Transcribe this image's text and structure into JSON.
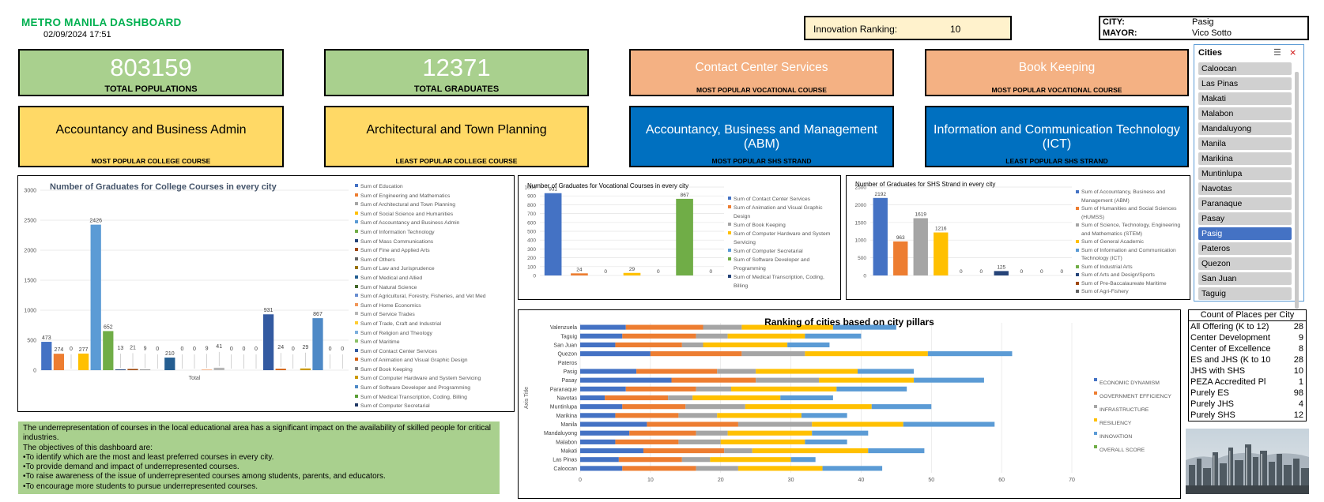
{
  "header": {
    "title": "METRO MANILA DASHBOARD",
    "datetime": "02/09/2024 17:51",
    "innovation_label": "Innovation Ranking:",
    "innovation_value": "10",
    "city_label": "CITY:",
    "city_value": "Pasig",
    "mayor_label": "MAYOR:",
    "mayor_value": "Vico Sotto"
  },
  "kpis": [
    {
      "value": "803159",
      "label": "TOTAL POPULATIONS",
      "color": "#a9d08e"
    },
    {
      "value": "12371",
      "label": "TOTAL GRADUATES",
      "color": "#a9d08e"
    },
    {
      "value": "Contact Center Services",
      "label": "MOST POPULAR VOCATIONAL COURSE",
      "color": "#f4b183"
    },
    {
      "value": "Book Keeping",
      "label": "MOST POPULAR VOCATIONAL COURSE",
      "color": "#f4b183"
    },
    {
      "value": "Accountancy and Business Admin",
      "label": "MOST POPULAR COLLEGE COURSE",
      "color": "#ffd966"
    },
    {
      "value": "Architectural and Town Planning",
      "label": "LEAST POPULAR COLLEGE COURSE",
      "color": "#ffd966"
    },
    {
      "value": "Accountancy, Business and Management (ABM)",
      "label": "MOST POPULAR SHS STRAND",
      "color": "#0070c0"
    },
    {
      "value": "Information and Communication Technology (ICT)",
      "label": "LEAST POPULAR SHS STRAND",
      "color": "#0070c0"
    }
  ],
  "slicer": {
    "title": "Cities",
    "items": [
      "Caloocan",
      "Las Pinas",
      "Makati",
      "Malabon",
      "Mandaluyong",
      "Manila",
      "Marikina",
      "Muntinlupa",
      "Navotas",
      "Paranaque",
      "Pasay",
      "Pasig",
      "Pateros",
      "Quezon",
      "San Juan",
      "Taguig"
    ],
    "selected": "Pasig"
  },
  "objectives": {
    "intro": "The underrepresentation of courses in the local educational area has a significant impact on the availability of skilled people for critical industries.",
    "lead": "The objectives of this dashboard are:",
    "items": [
      "•To identify which are the most and least preferred courses in every city.",
      "•To provide demand and impact of underrepresented courses.",
      "•To raise awareness of the issue of underrepresented courses among students, parents, and educators.",
      "•To encourage more students to pursue underrepresented courses."
    ]
  },
  "count_table": {
    "header": "Count of Places per City",
    "rows": [
      {
        "label": "All Offering (K to 12)",
        "value": "28"
      },
      {
        "label": "Center Development",
        "value": "9"
      },
      {
        "label": "Center of Excellence",
        "value": "8"
      },
      {
        "label": "ES and JHS (K to 10",
        "value": "28"
      },
      {
        "label": "JHS with SHS",
        "value": "10"
      },
      {
        "label": "PEZA Accredited Pl",
        "value": "1"
      },
      {
        "label": "Purely ES",
        "value": "98"
      },
      {
        "label": "Purely JHS",
        "value": "4"
      },
      {
        "label": "Purely SHS",
        "value": "12"
      }
    ]
  },
  "chart_data": [
    {
      "type": "bar",
      "title": "Number of Graduates for College Courses in every city",
      "xlabel": "Total",
      "ylim": [
        0,
        3000
      ],
      "yticks": [
        "0",
        "500",
        "1000",
        "1500",
        "2000",
        "2500",
        "3000"
      ],
      "legend_position": "right",
      "series": [
        {
          "name": "Sum of Education",
          "value": 473,
          "label": "473",
          "color": "#4472c4"
        },
        {
          "name": "Sum of Engineering and Mathematics",
          "value": 274,
          "label": "274",
          "color": "#ed7d31"
        },
        {
          "name": "Sum of Architectural and Town Planning",
          "value": 0,
          "label": "0",
          "color": "#a5a5a5"
        },
        {
          "name": "Sum of Social Science and Humanities",
          "value": 277,
          "label": "277",
          "color": "#ffc000"
        },
        {
          "name": "Sum of Accountancy and Business Admin",
          "value": 2426,
          "label": "2426",
          "color": "#5b9bd5"
        },
        {
          "name": "Sum of Information Technology",
          "value": 652,
          "label": "652",
          "color": "#70ad47"
        },
        {
          "name": "Sum of Mass Communications",
          "value": 13,
          "label": "13",
          "color": "#264478"
        },
        {
          "name": "Sum of Fine and Applied Arts",
          "value": 21,
          "label": "21",
          "color": "#9e480e"
        },
        {
          "name": "Sum of Others",
          "value": 9,
          "label": "9",
          "color": "#636363"
        },
        {
          "name": "Sum of Law and Jurisprudence",
          "value": 0,
          "label": "0",
          "color": "#997300"
        },
        {
          "name": "Sum of Medical and Allied",
          "value": 210,
          "label": "210",
          "color": "#255e91"
        },
        {
          "name": "Sum of Natural Science",
          "value": 0,
          "label": "0",
          "color": "#43682b"
        },
        {
          "name": "Sum of Agricultural, Forestry, Fisheries, and Vet Med",
          "value": 0,
          "label": "0",
          "color": "#698ed0"
        },
        {
          "name": "Sum of Home Economics",
          "value": 9,
          "label": "9",
          "color": "#f1975a"
        },
        {
          "name": "Sum of Service Trades",
          "value": 41,
          "label": "41",
          "color": "#b7b7b7"
        },
        {
          "name": "Sum of Trade, Craft and Industrial",
          "value": 0,
          "label": "0",
          "color": "#ffcd33"
        },
        {
          "name": "Sum of Religion and Theology",
          "value": 0,
          "label": "0",
          "color": "#7cafdd"
        },
        {
          "name": "Sum of Maritime",
          "value": 0,
          "label": "0",
          "color": "#8cc168"
        },
        {
          "name": "Sum of Contact Center Services",
          "value": 931,
          "label": "931",
          "color": "#335aa1"
        },
        {
          "name": "Sum of Animation and Visual Graphic Design",
          "value": 24,
          "label": "24",
          "color": "#d26012"
        },
        {
          "name": "Sum of Book Keeping",
          "value": 0,
          "label": "0",
          "color": "#848484"
        },
        {
          "name": "Sum of Computer Hardware and System Servicing",
          "value": 29,
          "label": "29",
          "color": "#cc9a00"
        },
        {
          "name": "Sum of Software Developer and Programming",
          "value": 867,
          "label": "867",
          "color": "#4e89c6"
        },
        {
          "name": "Sum of Medical Transcription, Coding, Billing",
          "value": 0,
          "label": "0",
          "color": "#5a9e36"
        },
        {
          "name": "Sum of Computer Secretarial",
          "value": 0,
          "label": "0",
          "color": "#203864"
        }
      ]
    },
    {
      "type": "bar",
      "title": "Number of Graduates for Vocational Courses in every city",
      "ylim": [
        0,
        1000
      ],
      "yticks": [
        "0",
        "100",
        "200",
        "300",
        "400",
        "500",
        "600",
        "700",
        "800",
        "900",
        "1000"
      ],
      "legend_position": "right",
      "series": [
        {
          "name": "Sum of Contact Center Services",
          "value": 931,
          "label": "931",
          "color": "#4472c4"
        },
        {
          "name": "Sum of Animation and Visual Graphic Design",
          "value": 24,
          "label": "24",
          "color": "#ed7d31"
        },
        {
          "name": "Sum of Book Keeping",
          "value": 0,
          "label": "0",
          "color": "#a5a5a5"
        },
        {
          "name": "Sum of Computer Hardware and System Servicing",
          "value": 29,
          "label": "29",
          "color": "#ffc000"
        },
        {
          "name": "Sum of Computer Secretarial",
          "value": 0,
          "label": "0",
          "color": "#5b9bd5"
        },
        {
          "name": "Sum of Software Developer and Programming",
          "value": 867,
          "label": "867",
          "color": "#70ad47"
        },
        {
          "name": "Sum of Medical Transcription, Coding, Billing",
          "value": 0,
          "label": "0",
          "color": "#264478"
        }
      ]
    },
    {
      "type": "bar",
      "title": "Number of Graduates for SHS Strand in every city",
      "ylim": [
        0,
        2500
      ],
      "yticks": [
        "0",
        "500",
        "1000",
        "1500",
        "2000",
        "2500"
      ],
      "legend_position": "right",
      "series": [
        {
          "name": "Sum of Accountancy, Business and Management (ABM)",
          "value": 2192,
          "label": "2192",
          "color": "#4472c4"
        },
        {
          "name": "Sum of Humanities and Social Sciences (HUMSS)",
          "value": 963,
          "label": "963",
          "color": "#ed7d31"
        },
        {
          "name": "Sum of Science, Technology, Engineering and Mathematics (STEM)",
          "value": 1619,
          "label": "1619",
          "color": "#a5a5a5"
        },
        {
          "name": "Sum of General Academic",
          "value": 1216,
          "label": "1216",
          "color": "#ffc000"
        },
        {
          "name": "Sum of Information and Communication Technology (ICT)",
          "value": 0,
          "label": "0",
          "color": "#5b9bd5"
        },
        {
          "name": "Sum of Industrial Arts",
          "value": 0,
          "label": "0",
          "color": "#70ad47"
        },
        {
          "name": "Sum of Arts and Design/Sports",
          "value": 125,
          "label": "125",
          "color": "#264478"
        },
        {
          "name": "Sum of Pre-Baccalaureate Maritime",
          "value": 0,
          "label": "0",
          "color": "#9e480e"
        },
        {
          "name": "Sum of Agri-Fishery",
          "value": 0,
          "label": "0",
          "color": "#636363"
        },
        {
          "name": "",
          "value": 0,
          "label": "0",
          "color": "#997300"
        }
      ]
    },
    {
      "type": "bar",
      "orientation": "horizontal",
      "stacked": true,
      "title": "Ranking of cities based on city pillars",
      "ylabel": "Axis Title",
      "xlim": [
        0,
        70
      ],
      "xticks": [
        "0",
        "10",
        "20",
        "30",
        "40",
        "50",
        "60",
        "70"
      ],
      "legend_position": "right",
      "categories": [
        "Caloocan",
        "Las Pinas",
        "Makati",
        "Malabon",
        "Mandaluyong",
        "Manila",
        "Marikina",
        "Muntinlupa",
        "Navotas",
        "Paranaque",
        "Pasay",
        "Pasig",
        "Pateros",
        "Quezon",
        "San Juan",
        "Taguig",
        "Valenzuela"
      ],
      "series": [
        {
          "name": "ECONOMIC DYNAMISM",
          "color": "#4472c4",
          "values": [
            6,
            5.5,
            9,
            5,
            7,
            9.5,
            5,
            6,
            3.5,
            6.5,
            13,
            8,
            0,
            10,
            5,
            6,
            6.5
          ]
        },
        {
          "name": "GOVERNMENT EFFICIENCY",
          "color": "#ed7d31",
          "values": [
            10.5,
            9,
            11.5,
            9,
            9.5,
            13,
            9,
            9,
            9,
            10,
            12,
            11.5,
            0,
            13,
            9.5,
            10.5,
            11
          ]
        },
        {
          "name": "INFRASTRUCTURE",
          "color": "#a5a5a5",
          "values": [
            6,
            4,
            4,
            6,
            4.5,
            10.5,
            5.5,
            8.5,
            3.5,
            5,
            9,
            5.5,
            0,
            9,
            3,
            4.5,
            5.5
          ]
        },
        {
          "name": "RESILIENCY",
          "color": "#ffc000",
          "values": [
            12,
            11.5,
            16.5,
            12,
            12,
            13,
            12,
            18,
            12.5,
            15,
            13.5,
            14.5,
            0,
            17.5,
            12,
            11,
            13
          ]
        },
        {
          "name": "INNOVATION",
          "color": "#5b9bd5",
          "values": [
            8.5,
            3.5,
            8,
            6,
            8,
            13,
            6.5,
            8.5,
            7.5,
            10,
            10,
            8,
            0,
            12,
            6,
            8,
            9
          ]
        },
        {
          "name": "OVERALL SCORE",
          "color": "#70ad47",
          "values": [
            0,
            0,
            0,
            0,
            0,
            0,
            0,
            0,
            0,
            0,
            0,
            0,
            0,
            0,
            0,
            0,
            0
          ]
        }
      ]
    }
  ]
}
